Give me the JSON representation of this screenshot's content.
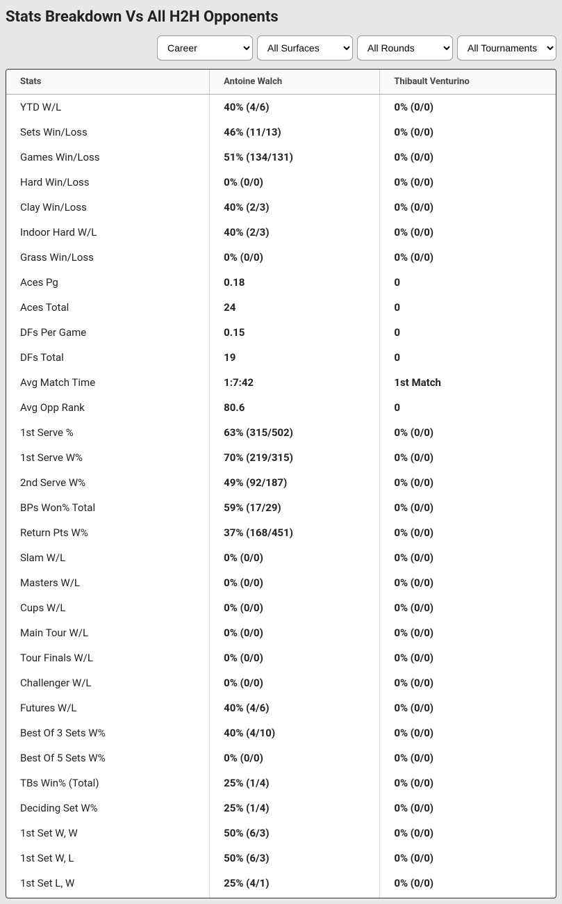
{
  "title": "Stats Breakdown Vs All H2H Opponents",
  "filters": {
    "period": {
      "selected": "Career",
      "options": [
        "Career"
      ]
    },
    "surface": {
      "selected": "All Surfaces",
      "options": [
        "All Surfaces"
      ]
    },
    "round": {
      "selected": "All Rounds",
      "options": [
        "All Rounds"
      ]
    },
    "tournament": {
      "selected": "All Tournaments",
      "options": [
        "All Tournaments"
      ]
    }
  },
  "columns": [
    "Stats",
    "Antoine Walch",
    "Thibault Venturino"
  ],
  "rows": [
    [
      "YTD W/L",
      "40% (4/6)",
      "0% (0/0)"
    ],
    [
      "Sets Win/Loss",
      "46% (11/13)",
      "0% (0/0)"
    ],
    [
      "Games Win/Loss",
      "51% (134/131)",
      "0% (0/0)"
    ],
    [
      "Hard Win/Loss",
      "0% (0/0)",
      "0% (0/0)"
    ],
    [
      "Clay Win/Loss",
      "40% (2/3)",
      "0% (0/0)"
    ],
    [
      "Indoor Hard W/L",
      "40% (2/3)",
      "0% (0/0)"
    ],
    [
      "Grass Win/Loss",
      "0% (0/0)",
      "0% (0/0)"
    ],
    [
      "Aces Pg",
      "0.18",
      "0"
    ],
    [
      "Aces Total",
      "24",
      "0"
    ],
    [
      "DFs Per Game",
      "0.15",
      "0"
    ],
    [
      "DFs Total",
      "19",
      "0"
    ],
    [
      "Avg Match Time",
      "1:7:42",
      "1st Match"
    ],
    [
      "Avg Opp Rank",
      "80.6",
      "0"
    ],
    [
      "1st Serve %",
      "63% (315/502)",
      "0% (0/0)"
    ],
    [
      "1st Serve W%",
      "70% (219/315)",
      "0% (0/0)"
    ],
    [
      "2nd Serve W%",
      "49% (92/187)",
      "0% (0/0)"
    ],
    [
      "BPs Won% Total",
      "59% (17/29)",
      "0% (0/0)"
    ],
    [
      "Return Pts W%",
      "37% (168/451)",
      "0% (0/0)"
    ],
    [
      "Slam W/L",
      "0% (0/0)",
      "0% (0/0)"
    ],
    [
      "Masters W/L",
      "0% (0/0)",
      "0% (0/0)"
    ],
    [
      "Cups W/L",
      "0% (0/0)",
      "0% (0/0)"
    ],
    [
      "Main Tour W/L",
      "0% (0/0)",
      "0% (0/0)"
    ],
    [
      "Tour Finals W/L",
      "0% (0/0)",
      "0% (0/0)"
    ],
    [
      "Challenger W/L",
      "0% (0/0)",
      "0% (0/0)"
    ],
    [
      "Futures W/L",
      "40% (4/6)",
      "0% (0/0)"
    ],
    [
      "Best Of 3 Sets W%",
      "40% (4/10)",
      "0% (0/0)"
    ],
    [
      "Best Of 5 Sets W%",
      "0% (0/0)",
      "0% (0/0)"
    ],
    [
      "TBs Win% (Total)",
      "25% (1/4)",
      "0% (0/0)"
    ],
    [
      "Deciding Set W%",
      "25% (1/4)",
      "0% (0/0)"
    ],
    [
      "1st Set W, W",
      "50% (6/3)",
      "0% (0/0)"
    ],
    [
      "1st Set W, L",
      "50% (6/3)",
      "0% (0/0)"
    ],
    [
      "1st Set L, W",
      "25% (4/1)",
      "0% (0/0)"
    ]
  ]
}
